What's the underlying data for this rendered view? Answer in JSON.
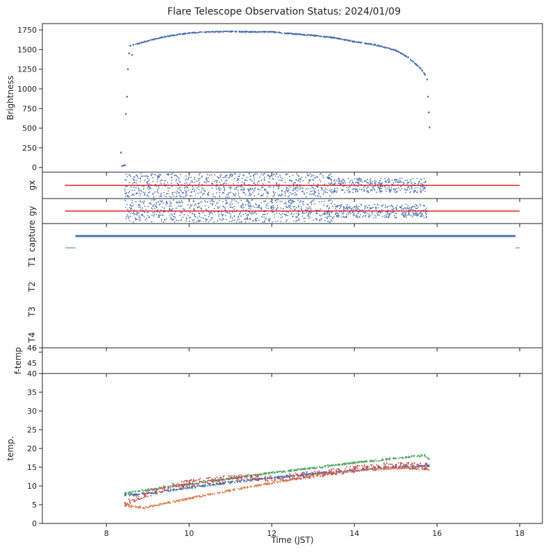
{
  "chart_data": {
    "type": "scatter",
    "title": "Flare Telescope Observation Status: 2024/01/09",
    "xlabel": "Time (JST)",
    "xlim": [
      6.45,
      18.55
    ],
    "xticks": [
      8,
      10,
      12,
      14,
      16,
      18
    ],
    "colors": {
      "blue": "#4c72b0",
      "orange": "#dd8452",
      "green": "#55a868",
      "red": "#c44e52",
      "refline": "#e02020"
    },
    "panels": [
      {
        "id": "brightness",
        "ylabel": "Brightness",
        "ylim": [
          -60,
          1830
        ],
        "yticks": [
          0,
          250,
          500,
          750,
          1000,
          1250,
          1500,
          1750
        ],
        "series": [
          {
            "color": "blue",
            "points": [
              [
                8.35,
                190
              ],
              [
                8.38,
                20
              ],
              [
                8.42,
                25
              ],
              [
                8.45,
                30
              ],
              [
                8.47,
                680
              ],
              [
                8.5,
                900
              ],
              [
                8.52,
                1250
              ],
              [
                8.55,
                1450
              ],
              [
                8.58,
                1550
              ],
              [
                8.62,
                1430
              ],
              [
                8.65,
                1560
              ],
              [
                8.8,
                1580
              ],
              [
                9.0,
                1610
              ],
              [
                9.3,
                1650
              ],
              [
                9.6,
                1680
              ],
              [
                10.0,
                1710
              ],
              [
                10.5,
                1725
              ],
              [
                11.0,
                1730
              ],
              [
                11.5,
                1725
              ],
              [
                12.0,
                1725
              ],
              [
                12.5,
                1700
              ],
              [
                13.0,
                1680
              ],
              [
                13.5,
                1650
              ],
              [
                14.0,
                1600
              ],
              [
                14.5,
                1560
              ],
              [
                15.0,
                1490
              ],
              [
                15.3,
                1400
              ],
              [
                15.6,
                1260
              ],
              [
                15.7,
                1190
              ],
              [
                15.76,
                1120
              ],
              [
                15.78,
                900
              ],
              [
                15.8,
                700
              ],
              [
                15.82,
                510
              ]
            ]
          }
        ]
      },
      {
        "id": "gx",
        "ylabel": "gx",
        "ylim": [
          -1,
          1
        ],
        "hline": {
          "y": 0,
          "from": 7.0,
          "to": 18.0
        },
        "scatter_range": [
          8.45,
          15.75
        ]
      },
      {
        "id": "gy",
        "ylabel": "gy",
        "ylim": [
          -1,
          1
        ],
        "hline": {
          "y": 0,
          "from": 7.0,
          "to": 18.0
        },
        "scatter_range": [
          8.45,
          15.75
        ]
      },
      {
        "id": "capture",
        "ylabels": [
          "capture",
          "T1",
          "T2",
          "T3",
          "T4"
        ],
        "capture_line": {
          "from": 7.25,
          "to": 17.9
        },
        "low_segments": [
          [
            7.0,
            7.25
          ],
          [
            17.9,
            18.0
          ]
        ]
      },
      {
        "id": "ftemp",
        "ylabel": "f-temp",
        "ylim": [
          40,
          46
        ],
        "yticks": [
          40,
          45,
          46
        ]
      },
      {
        "id": "temp",
        "ylabel": "temp.",
        "ylim": [
          0,
          40
        ],
        "yticks": [
          0,
          5,
          10,
          15,
          20,
          25,
          30,
          35
        ],
        "series": [
          {
            "color": "green",
            "points": [
              [
                8.45,
                8.0
              ],
              [
                9.0,
                9.0
              ],
              [
                10.0,
                10.5
              ],
              [
                11.0,
                12.0
              ],
              [
                12.0,
                13.5
              ],
              [
                13.0,
                14.8
              ],
              [
                14.0,
                16.2
              ],
              [
                15.0,
                17.4
              ],
              [
                15.7,
                18.2
              ],
              [
                15.8,
                17.2
              ]
            ]
          },
          {
            "color": "blue",
            "points": [
              [
                8.45,
                7.5
              ],
              [
                9.0,
                8.0
              ],
              [
                10.0,
                9.5
              ],
              [
                11.0,
                11.0
              ],
              [
                12.0,
                12.2
              ],
              [
                13.0,
                13.2
              ],
              [
                14.0,
                14.2
              ],
              [
                15.0,
                15.0
              ],
              [
                15.8,
                15.5
              ]
            ]
          },
          {
            "color": "orange",
            "points": [
              [
                8.45,
                4.8
              ],
              [
                8.9,
                4.2
              ],
              [
                9.5,
                5.5
              ],
              [
                10.5,
                7.8
              ],
              [
                11.5,
                9.8
              ],
              [
                12.5,
                11.8
              ],
              [
                13.5,
                13.5
              ],
              [
                14.5,
                14.5
              ],
              [
                15.3,
                14.8
              ],
              [
                15.8,
                14.3
              ]
            ]
          },
          {
            "color": "red",
            "points": [
              [
                8.45,
                5.5
              ],
              [
                9.0,
                8.0
              ],
              [
                9.5,
                9.5
              ],
              [
                10.0,
                10.8
              ],
              [
                11.0,
                12.0
              ],
              [
                11.5,
                12.3
              ],
              [
                12.0,
                12.0
              ],
              [
                13.0,
                13.0
              ],
              [
                14.0,
                14.5
              ],
              [
                14.5,
                15.0
              ],
              [
                15.0,
                15.5
              ],
              [
                15.8,
                15.2
              ]
            ]
          }
        ]
      }
    ]
  }
}
